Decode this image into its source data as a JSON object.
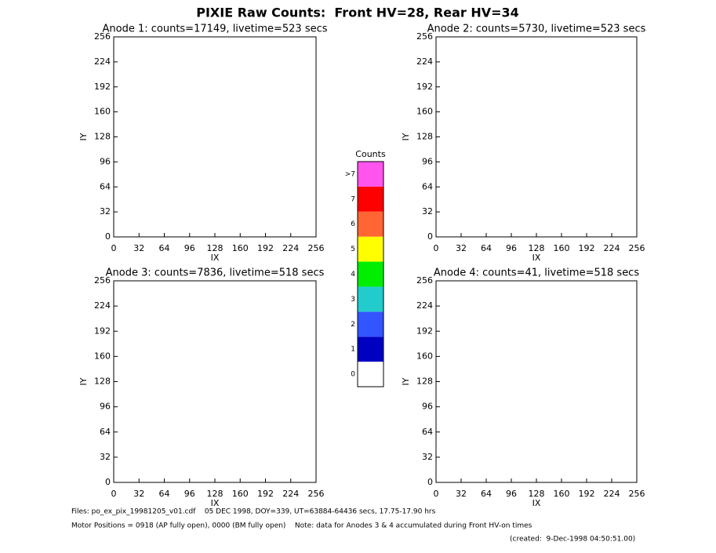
{
  "title": "PIXIE Raw Counts:  Front HV=28, Rear HV=34",
  "chart_data": [
    {
      "type": "heatmap",
      "title": "Anode 1: counts=17149, livetime=523 secs",
      "x_label": "IX",
      "y_label": "IY",
      "xlim": [
        0,
        256
      ],
      "ylim": [
        0,
        256
      ],
      "xticks": [
        0,
        32,
        64,
        96,
        128,
        160,
        192,
        224,
        256
      ],
      "yticks": [
        0,
        32,
        64,
        96,
        128,
        160,
        192,
        224,
        256
      ]
    },
    {
      "type": "heatmap",
      "title": "Anode 2: counts=5730, livetime=523 secs",
      "x_label": "IX",
      "y_label": "IY",
      "xlim": [
        0,
        256
      ],
      "ylim": [
        0,
        256
      ],
      "xticks": [
        0,
        32,
        64,
        96,
        128,
        160,
        192,
        224,
        256
      ],
      "yticks": [
        0,
        32,
        64,
        96,
        128,
        160,
        192,
        224,
        256
      ]
    },
    {
      "type": "heatmap",
      "title": "Anode 3: counts=7836, livetime=518 secs",
      "x_label": "IX",
      "y_label": "IY",
      "xlim": [
        0,
        256
      ],
      "ylim": [
        0,
        256
      ],
      "xticks": [
        0,
        32,
        64,
        96,
        128,
        160,
        192,
        224,
        256
      ],
      "yticks": [
        0,
        32,
        64,
        96,
        128,
        160,
        192,
        224,
        256
      ]
    },
    {
      "type": "heatmap",
      "title": "Anode 4: counts=41, livetime=518 secs",
      "x_label": "IX",
      "y_label": "IY",
      "xlim": [
        0,
        256
      ],
      "ylim": [
        0,
        256
      ],
      "xticks": [
        0,
        32,
        64,
        96,
        128,
        160,
        192,
        224,
        256
      ],
      "yticks": [
        0,
        32,
        64,
        96,
        128,
        160,
        192,
        224,
        256
      ]
    }
  ],
  "colorbar": {
    "title": "Counts",
    "labels": [
      0,
      1,
      2,
      3,
      4,
      5,
      6,
      7,
      ">7"
    ],
    "colors": [
      "#ffffff",
      "#0000c0",
      "#3355ff",
      "#22cccc",
      "#00ee00",
      "#ffff00",
      "#ff6633",
      "#ff0000",
      "#ff55ee"
    ]
  },
  "footer": {
    "files": "Files: po_ex_pix_19981205_v01.cdf    05 DEC 1998, DOY=339, UT=63884-64436 secs, 17.75-17.90 hrs",
    "motor": "Motor Positions = 0918 (AP fully open), 0000 (BM fully open)    Note: data for Anodes 3 & 4 accumulated during Front HV-on times",
    "created": "(created:  9-Dec-1998 04:50:51.00)"
  }
}
